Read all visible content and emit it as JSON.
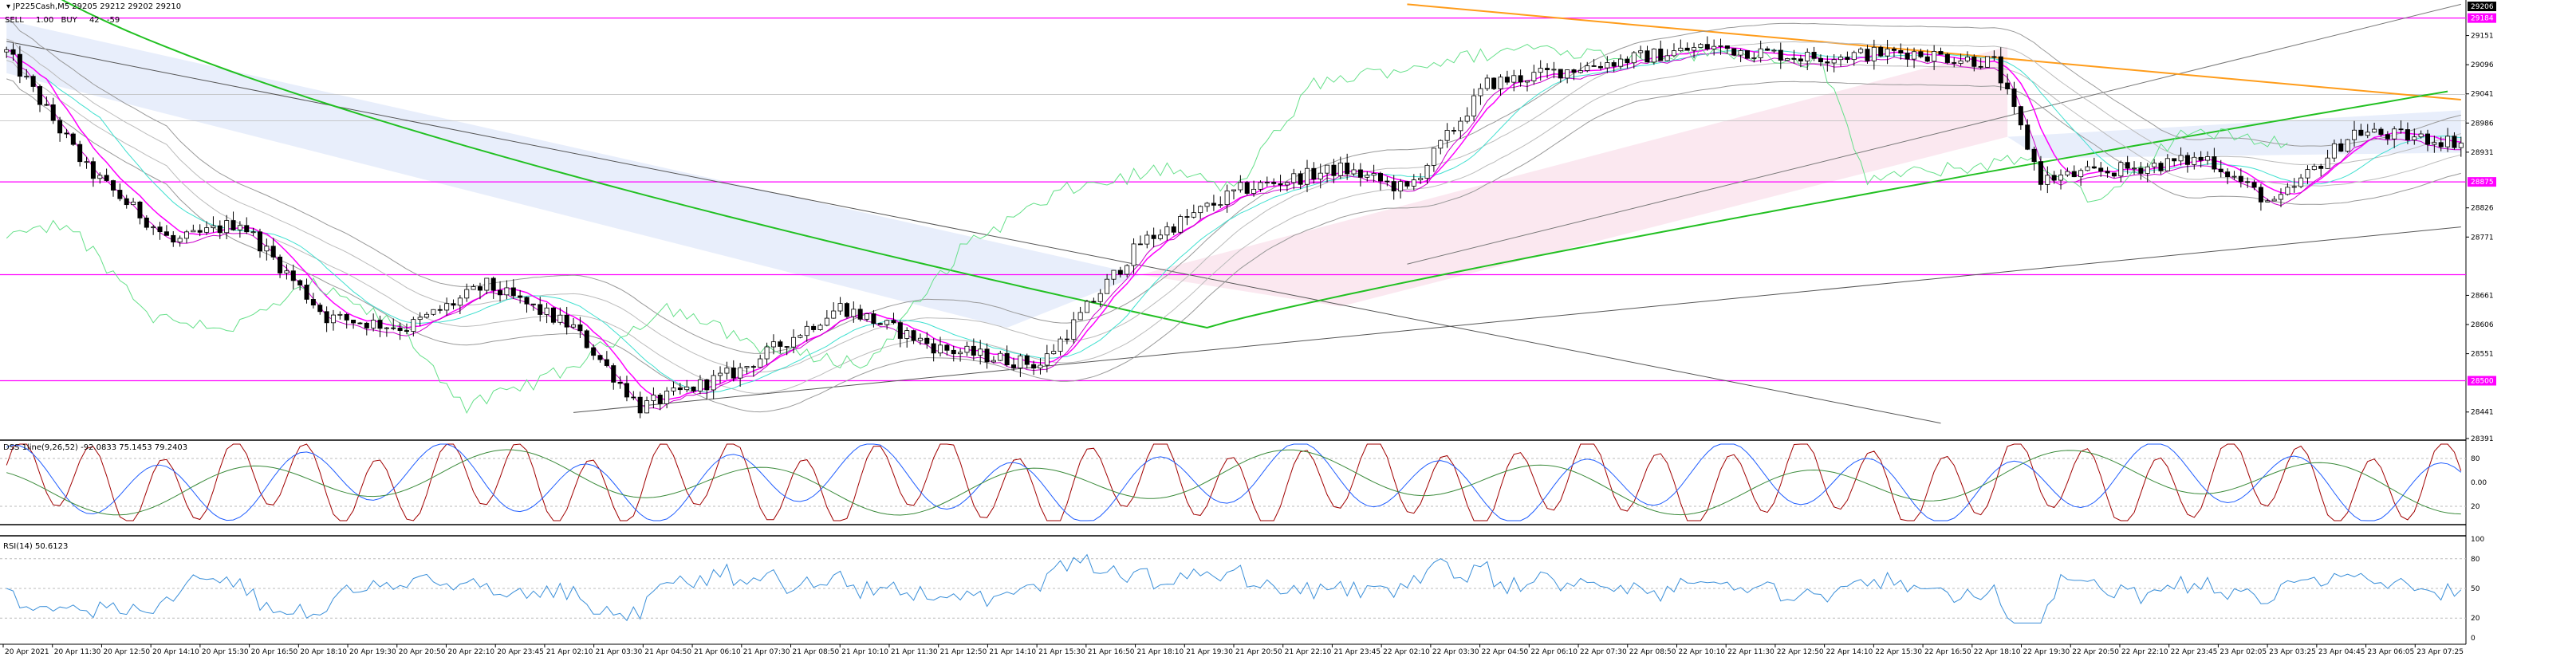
{
  "header": {
    "symbol_line": "JP225Cash,M5  29205 29212 29202 29210",
    "buy_btn": "BUY",
    "sell_btn": "SELL",
    "lots": "1.00",
    "price_up": "42",
    "price_down": "-59"
  },
  "subwindows": {
    "stoch_label": "DSS 1line(9,26,52)  -92.0833  75.1453  79.2403",
    "rsi_label": "RSI(14) 50.6123"
  },
  "colors": {
    "magenta": "#ff00ff",
    "green_ma": "#22c022",
    "orange_line": "#ff9c1a",
    "cyan": "#40e0d0",
    "blue": "#1e5cff",
    "dark_red": "#a00000",
    "rsi": "#3a8fd9",
    "cloud_blue": "#e6ecfb",
    "cloud_pink": "#fbe6ee"
  },
  "chart_data": {
    "type": "candlestick",
    "symbol": "JP225Cash",
    "timeframe": "M5",
    "ylim": [
      28391,
      29206
    ],
    "price_axis_ticks": [
      29151,
      29096,
      29041,
      28986,
      28931,
      28826,
      28771,
      28661,
      28606,
      28551,
      28441,
      28391
    ],
    "price_axis_tags": [
      "29206",
      "29184",
      "28875",
      "28500"
    ],
    "last_price": 29210,
    "horizontal_levels": [
      29184,
      28875,
      28700,
      28500
    ],
    "time_ticks": [
      "20 Apr 2021",
      "20 Apr 11:30",
      "20 Apr 12:50",
      "20 Apr 14:10",
      "20 Apr 15:30",
      "20 Apr 16:50",
      "20 Apr 18:10",
      "20 Apr 19:30",
      "20 Apr 20:50",
      "20 Apr 22:10",
      "20 Apr 23:45",
      "21 Apr 02:10",
      "21 Apr 03:30",
      "21 Apr 04:50",
      "21 Apr 06:10",
      "21 Apr 07:30",
      "21 Apr 08:50",
      "21 Apr 10:10",
      "21 Apr 11:30",
      "21 Apr 12:50",
      "21 Apr 14:10",
      "21 Apr 15:30",
      "21 Apr 16:50",
      "21 Apr 18:10",
      "21 Apr 19:30",
      "21 Apr 20:50",
      "21 Apr 22:10",
      "21 Apr 23:45",
      "22 Apr 02:10",
      "22 Apr 03:30",
      "22 Apr 04:50",
      "22 Apr 06:10",
      "22 Apr 07:30",
      "22 Apr 08:50",
      "22 Apr 10:10",
      "22 Apr 11:30",
      "22 Apr 12:50",
      "22 Apr 14:10",
      "22 Apr 15:30",
      "22 Apr 16:50",
      "22 Apr 18:10",
      "22 Apr 19:30",
      "22 Apr 20:50",
      "22 Apr 22:10",
      "22 Apr 23:45",
      "23 Apr 02:05",
      "23 Apr 03:25",
      "23 Apr 04:45",
      "23 Apr 06:05",
      "23 Apr 07:25"
    ],
    "close_trend_anchors": [
      [
        0,
        29120
      ],
      [
        12,
        28900
      ],
      [
        25,
        28760
      ],
      [
        35,
        28800
      ],
      [
        48,
        28620
      ],
      [
        60,
        28600
      ],
      [
        72,
        28680
      ],
      [
        85,
        28600
      ],
      [
        95,
        28450
      ],
      [
        110,
        28520
      ],
      [
        125,
        28640
      ],
      [
        140,
        28560
      ],
      [
        155,
        28530
      ],
      [
        170,
        28760
      ],
      [
        185,
        28860
      ],
      [
        200,
        28900
      ],
      [
        210,
        28860
      ],
      [
        222,
        29060
      ],
      [
        240,
        29100
      ],
      [
        255,
        29130
      ],
      [
        270,
        29110
      ],
      [
        285,
        29120
      ],
      [
        298,
        29100
      ],
      [
        305,
        28880
      ],
      [
        318,
        28900
      ],
      [
        330,
        28920
      ],
      [
        340,
        28830
      ],
      [
        352,
        28970
      ],
      [
        368,
        28950
      ]
    ],
    "stoch_ylim": [
      0,
      100
    ],
    "stoch_ticks": [
      "80",
      "0.00",
      "20"
    ],
    "rsi_ylim": [
      0,
      100
    ],
    "rsi_ticks": [
      "100",
      "80",
      "50",
      "20",
      "0"
    ],
    "rsi_last": 50.6123
  }
}
